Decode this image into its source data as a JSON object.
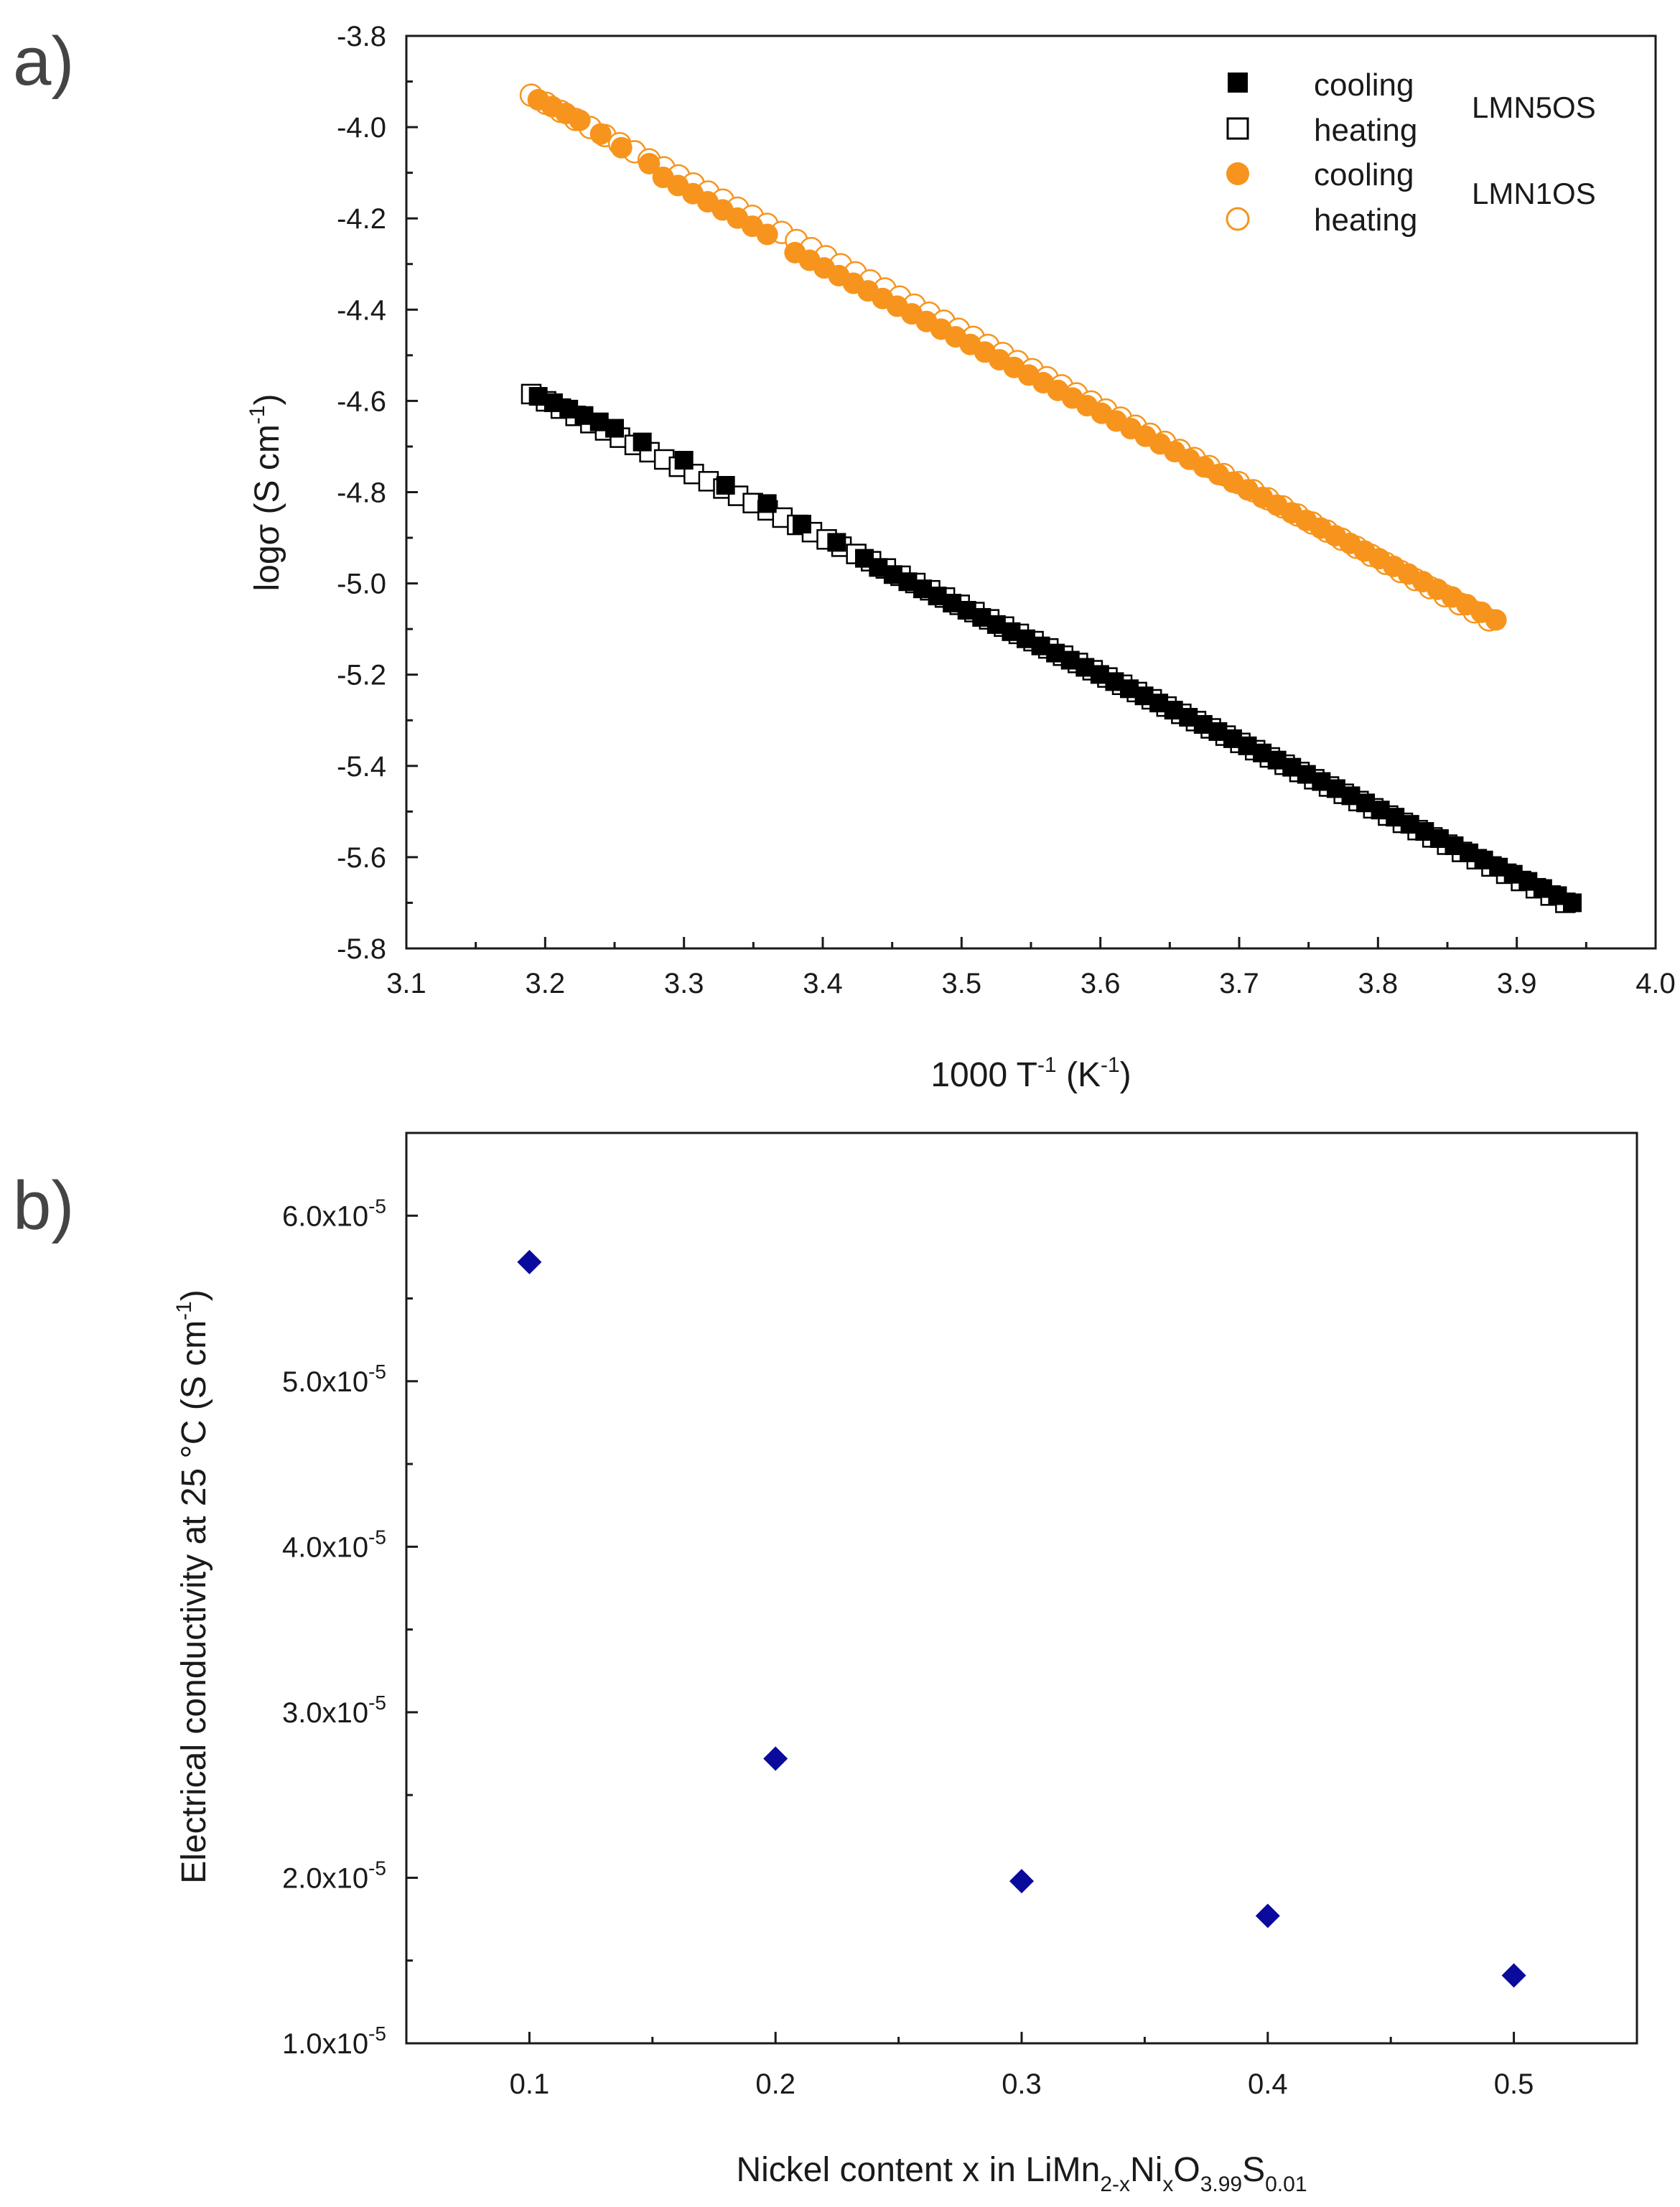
{
  "panel_a": {
    "label": "a)"
  },
  "panel_b": {
    "label": "b)"
  },
  "chart_data": [
    {
      "type": "scatter",
      "title": "",
      "xlabel": "1000 T-1 (K-1)",
      "ylabel": "logσ (S cm-1)",
      "xlim": [
        3.1,
        4.0
      ],
      "ylim": [
        -5.8,
        -3.8
      ],
      "xticks": [
        "3.1",
        "3.2",
        "3.3",
        "3.4",
        "3.5",
        "3.6",
        "3.7",
        "3.8",
        "3.9",
        "4.0"
      ],
      "yticks": [
        "-5.8",
        "-5.6",
        "-5.4",
        "-5.2",
        "-5.0",
        "-4.8",
        "-4.6",
        "-4.4",
        "-4.2",
        "-4.0",
        "-3.8"
      ],
      "legend": {
        "position": "top-right",
        "groups": [
          {
            "sample": "LMN5OS",
            "entries": [
              "cooling",
              "heating"
            ]
          },
          {
            "sample": "LMN1OS",
            "entries": [
              "cooling",
              "heating"
            ]
          }
        ]
      },
      "series": [
        {
          "name": "cooling",
          "sample": "LMN5OS",
          "marker": "filled-square",
          "color": "#000000",
          "segments": [
            {
              "x_start": 3.195,
              "x_end": 3.25,
              "y_start": -4.59,
              "y_end": -4.66
            },
            {
              "x": [
                3.27,
                3.3,
                3.33,
                3.36,
                3.385,
                3.41,
                3.43
              ],
              "y": [
                -4.69,
                -4.73,
                -4.785,
                -4.825,
                -4.87,
                -4.91,
                -4.945
              ]
            },
            {
              "x_start": 3.44,
              "x_end": 3.94,
              "y_start": -4.965,
              "y_end": -5.7
            }
          ]
        },
        {
          "name": "heating",
          "sample": "LMN5OS",
          "marker": "open-square",
          "color": "#000000",
          "segments": [
            {
              "x_start": 3.19,
              "x_end": 3.935,
              "y_start": -4.585,
              "y_end": -5.7
            }
          ]
        },
        {
          "name": "cooling",
          "sample": "LMN1OS",
          "marker": "filled-circle",
          "color": "#F7941D",
          "segments": [
            {
              "x_start": 3.195,
              "x_end": 3.225,
              "y_start": -3.94,
              "y_end": -3.985
            },
            {
              "x": [
                3.24,
                3.255,
                3.275
              ],
              "y": [
                -4.015,
                -4.045,
                -4.08
              ]
            },
            {
              "x_start": 3.285,
              "x_end": 3.36,
              "y_start": -4.11,
              "y_end": -4.235
            },
            {
              "x_start": 3.38,
              "x_end": 3.885,
              "y_start": -4.275,
              "y_end": -5.08
            }
          ]
        },
        {
          "name": "heating",
          "sample": "LMN1OS",
          "marker": "open-circle",
          "color": "#F7941D",
          "segments": [
            {
              "x_start": 3.19,
              "x_end": 3.88,
              "y_start": -3.93,
              "y_end": -5.08
            }
          ]
        }
      ]
    },
    {
      "type": "scatter",
      "title": "",
      "xlabel": "Nickel content x in LiMn2-xNixO3.99S0.01",
      "ylabel": "Electrical conductivity at 25 °C (S cm-1)",
      "xlim": [
        0.05,
        0.55
      ],
      "ylim": [
        1e-05,
        6.5e-05
      ],
      "xticks": [
        "0.1",
        "0.2",
        "0.3",
        "0.4",
        "0.5"
      ],
      "yticks": [
        "1.0x10-5",
        "2.0x10-5",
        "3.0x10-5",
        "4.0x10-5",
        "5.0x10-5",
        "6.0x10-5"
      ],
      "series": [
        {
          "name": "conductivity",
          "marker": "filled-diamond",
          "color": "#0A0A9C",
          "x": [
            0.1,
            0.2,
            0.3,
            0.4,
            0.5
          ],
          "y": [
            5.72e-05,
            2.72e-05,
            1.98e-05,
            1.77e-05,
            1.41e-05
          ]
        }
      ]
    }
  ]
}
